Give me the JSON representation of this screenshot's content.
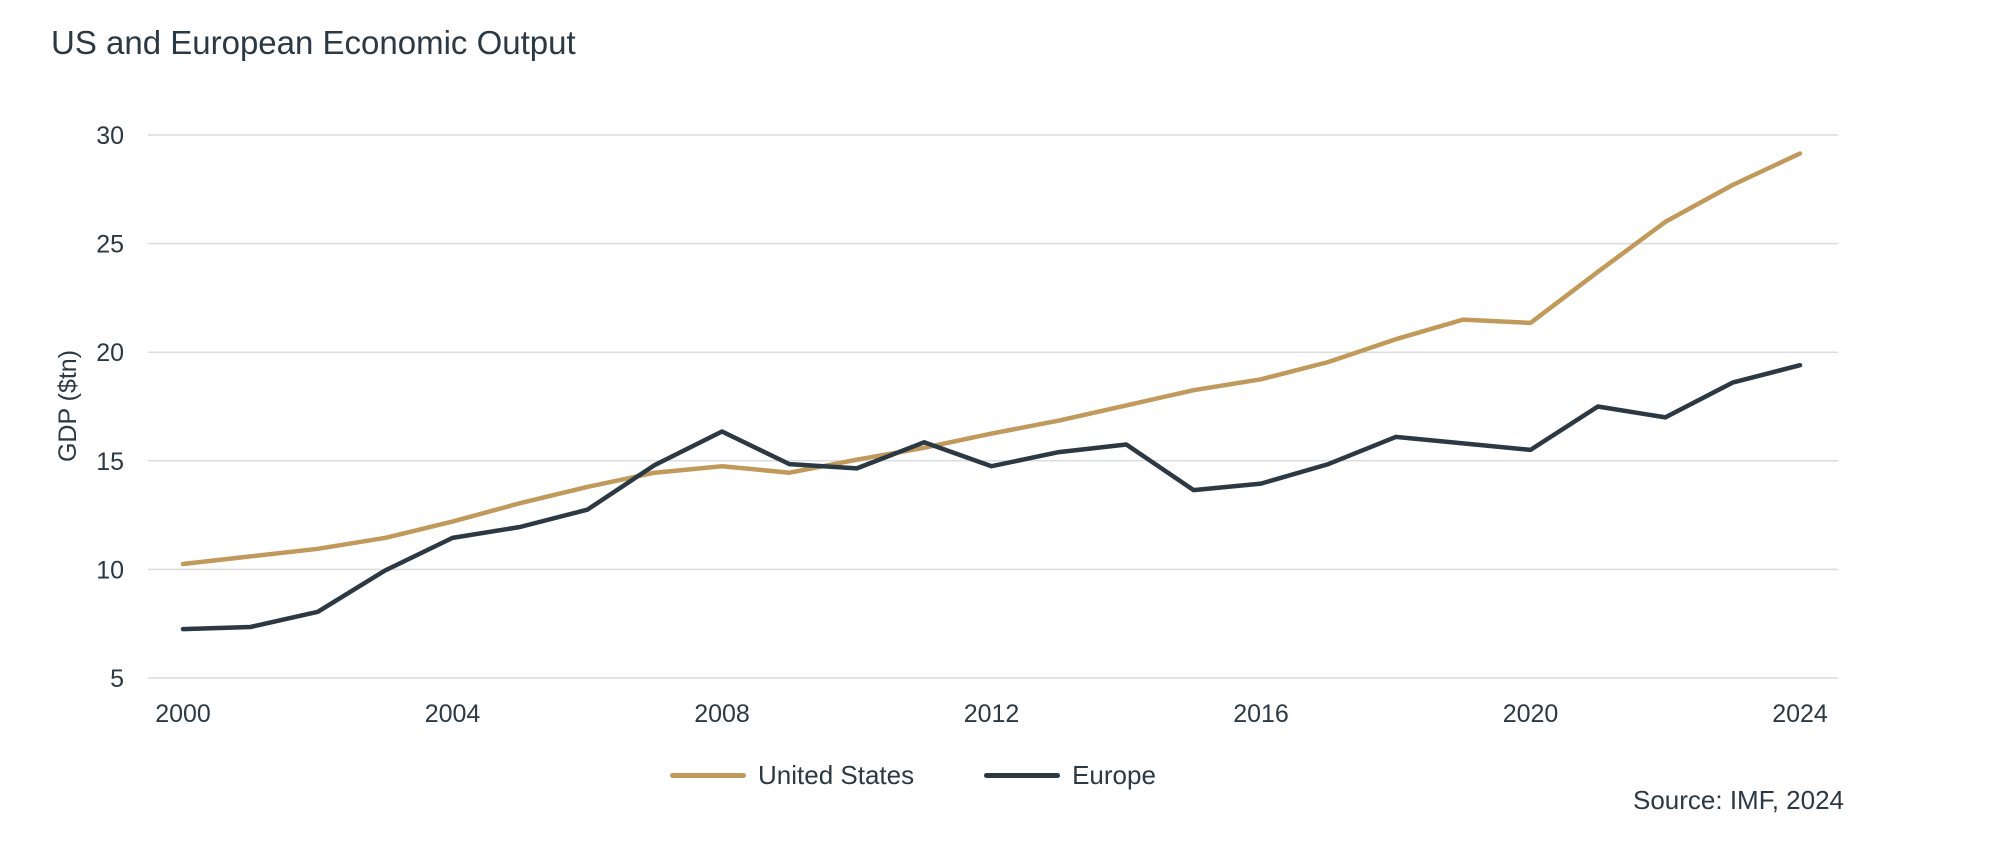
{
  "chart_data": {
    "type": "line",
    "title": "US and European Economic Output",
    "ylabel": "GDP ($tn)",
    "xlabel": "",
    "x": [
      2000,
      2001,
      2002,
      2003,
      2004,
      2005,
      2006,
      2007,
      2008,
      2009,
      2010,
      2011,
      2012,
      2013,
      2014,
      2015,
      2016,
      2017,
      2018,
      2019,
      2020,
      2021,
      2022,
      2023,
      2024
    ],
    "xlim": [
      2000,
      2024
    ],
    "xticks": [
      "2000",
      "2004",
      "2008",
      "2012",
      "2016",
      "2020",
      "2024"
    ],
    "ylim": [
      5,
      30
    ],
    "yticks": [
      "5",
      "10",
      "15",
      "20",
      "25",
      "30"
    ],
    "grid": true,
    "legend_position": "bottom-center",
    "series": [
      {
        "name": "United States",
        "color": "#c1995a",
        "values": [
          10.25,
          10.6,
          10.95,
          11.45,
          12.2,
          13.05,
          13.8,
          14.45,
          14.75,
          14.45,
          15.05,
          15.6,
          16.25,
          16.85,
          17.55,
          18.25,
          18.75,
          19.55,
          20.6,
          21.5,
          21.35,
          23.7,
          26.0,
          27.7,
          29.15
        ]
      },
      {
        "name": "Europe",
        "color": "#2b3944",
        "values": [
          7.25,
          7.35,
          8.05,
          9.95,
          11.45,
          11.95,
          12.75,
          14.8,
          16.35,
          14.85,
          14.65,
          15.85,
          14.75,
          15.4,
          15.75,
          13.65,
          13.95,
          14.85,
          16.1,
          15.8,
          15.5,
          17.5,
          17.0,
          18.6,
          19.4
        ]
      }
    ],
    "source": "Source: IMF, 2024"
  }
}
